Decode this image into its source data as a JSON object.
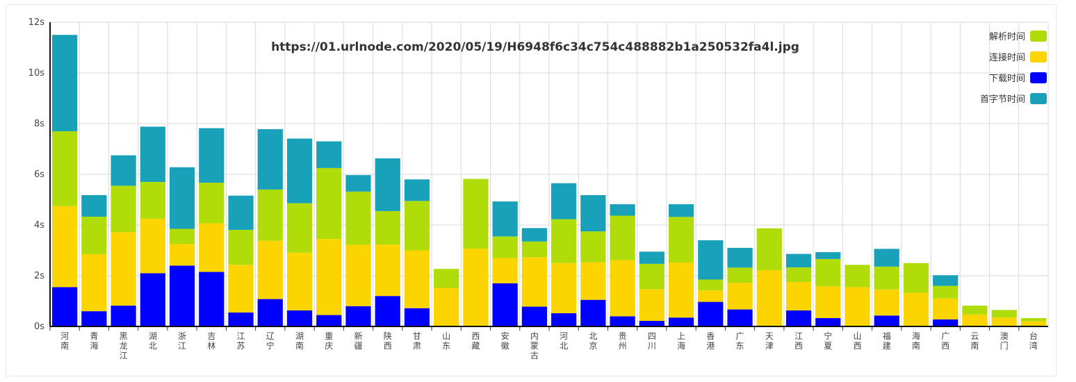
{
  "chart_data": {
    "type": "bar",
    "stacked": true,
    "title": "https://01.urlnode.com/2020/05/19/H6948f6c34c754c488882b1a250532fa4l.jpg",
    "xlabel": "",
    "ylabel": "",
    "ylim": [
      0,
      12
    ],
    "yticks": [
      "0s",
      "2s",
      "4s",
      "6s",
      "8s",
      "10s",
      "12s"
    ],
    "grid": true,
    "legend_position": "top-right",
    "categories": [
      "河南",
      "青海",
      "黑龙江",
      "湖北",
      "浙江",
      "吉林",
      "江苏",
      "辽宁",
      "湖南",
      "重庆",
      "新疆",
      "陕西",
      "甘肃",
      "山东",
      "西藏",
      "安徽",
      "内蒙古",
      "河北",
      "北京",
      "贵州",
      "四川",
      "上海",
      "香港",
      "广东",
      "天津",
      "江西",
      "宁夏",
      "山西",
      "福建",
      "海南",
      "广西",
      "云南",
      "澳门",
      "台湾"
    ],
    "series": [
      {
        "name": "下载时间",
        "color": "#0000ff",
        "values": [
          1.55,
          0.6,
          0.82,
          2.1,
          2.4,
          2.15,
          0.55,
          1.08,
          0.63,
          0.45,
          0.8,
          1.2,
          0.72,
          0,
          0,
          1.7,
          0.78,
          0.52,
          1.05,
          0.4,
          0.22,
          0.35,
          0.97,
          0.67,
          0,
          0.63,
          0.33,
          0,
          0.43,
          0,
          0.28,
          0,
          0,
          0
        ]
      },
      {
        "name": "连接时间",
        "color": "#fcd400",
        "values": [
          3.2,
          2.25,
          2.9,
          2.15,
          0.85,
          1.92,
          1.88,
          2.3,
          2.28,
          3.0,
          2.42,
          2.03,
          2.28,
          1.52,
          3.07,
          1.0,
          1.95,
          1.98,
          1.48,
          2.22,
          1.25,
          2.17,
          0.45,
          1.05,
          2.22,
          1.12,
          1.25,
          1.55,
          1.03,
          1.33,
          0.82,
          0.47,
          0.35,
          0.2
        ]
      },
      {
        "name": "解析时间",
        "color": "#b0dc0a",
        "values": [
          2.95,
          1.48,
          1.83,
          1.45,
          0.6,
          1.6,
          1.38,
          2.02,
          1.95,
          2.8,
          2.1,
          1.32,
          1.95,
          0.75,
          2.75,
          0.85,
          0.62,
          1.73,
          1.22,
          1.75,
          1.0,
          1.8,
          0.43,
          0.6,
          1.65,
          0.58,
          1.08,
          0.88,
          0.9,
          1.17,
          0.5,
          0.35,
          0.3,
          0.13
        ]
      },
      {
        "name": "首字节时间",
        "color": "#19a1b9",
        "values": [
          3.8,
          0.85,
          1.2,
          2.18,
          2.43,
          2.15,
          1.35,
          2.38,
          2.55,
          1.05,
          0.65,
          2.08,
          0.85,
          0,
          0,
          1.38,
          0.53,
          1.42,
          1.43,
          0.45,
          0.48,
          0.5,
          1.55,
          0.78,
          0,
          0.53,
          0.27,
          0,
          0.7,
          0,
          0.42,
          0,
          0,
          0
        ]
      }
    ]
  }
}
